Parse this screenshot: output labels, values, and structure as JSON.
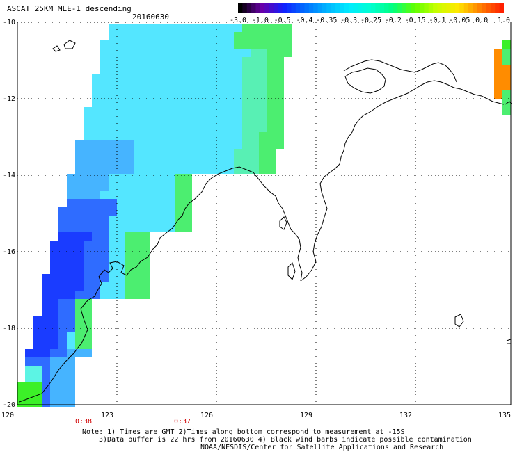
{
  "header": {
    "title": "ASCAT 25KM MLE-1 descending",
    "date": "20160630"
  },
  "colorbar": {
    "labels": [
      "-3.0",
      "-1.0",
      "-0.5",
      "-0.4",
      "-0.35",
      "-0.3",
      "-0.25",
      "-0.2",
      "-0.15",
      "-0.1",
      "-0.05",
      "0.0",
      "1.0"
    ],
    "colors": [
      "#000000",
      "#6a00a8",
      "#1020ff",
      "#0070ff",
      "#00b4ff",
      "#00ecff",
      "#00ffd0",
      "#00ff80",
      "#60ff00",
      "#c8ff00",
      "#ffe800",
      "#ff8000",
      "#ff2000"
    ]
  },
  "axes": {
    "lat_labels": [
      "-10",
      "-12",
      "-14",
      "-16",
      "-18",
      "-20"
    ],
    "lon_labels": [
      "120",
      "123",
      "126",
      "129",
      "132",
      "135"
    ]
  },
  "times": [
    "0:38",
    "0:37"
  ],
  "notes": [
    "Note: 1) Times are GMT 2)Times along bottom correspond to measurement at -15S",
    "3)Data buffer is 22 hrs from 20160630 4) Black wind barbs indicate possible contamination",
    "NOAA/NESDIS/Center for Satellite Applications and Research"
  ],
  "map_colors": {
    "deep_blue": "#1a3cff",
    "blue": "#2f6cff",
    "light_blue": "#46b4ff",
    "cyan": "#54e6ff",
    "aqua": "#5cf4e4",
    "seafoam": "#58f0b4",
    "green": "#4cee70",
    "lime": "#3cf028",
    "orange": "#ff8c00",
    "grid": "#000000"
  }
}
